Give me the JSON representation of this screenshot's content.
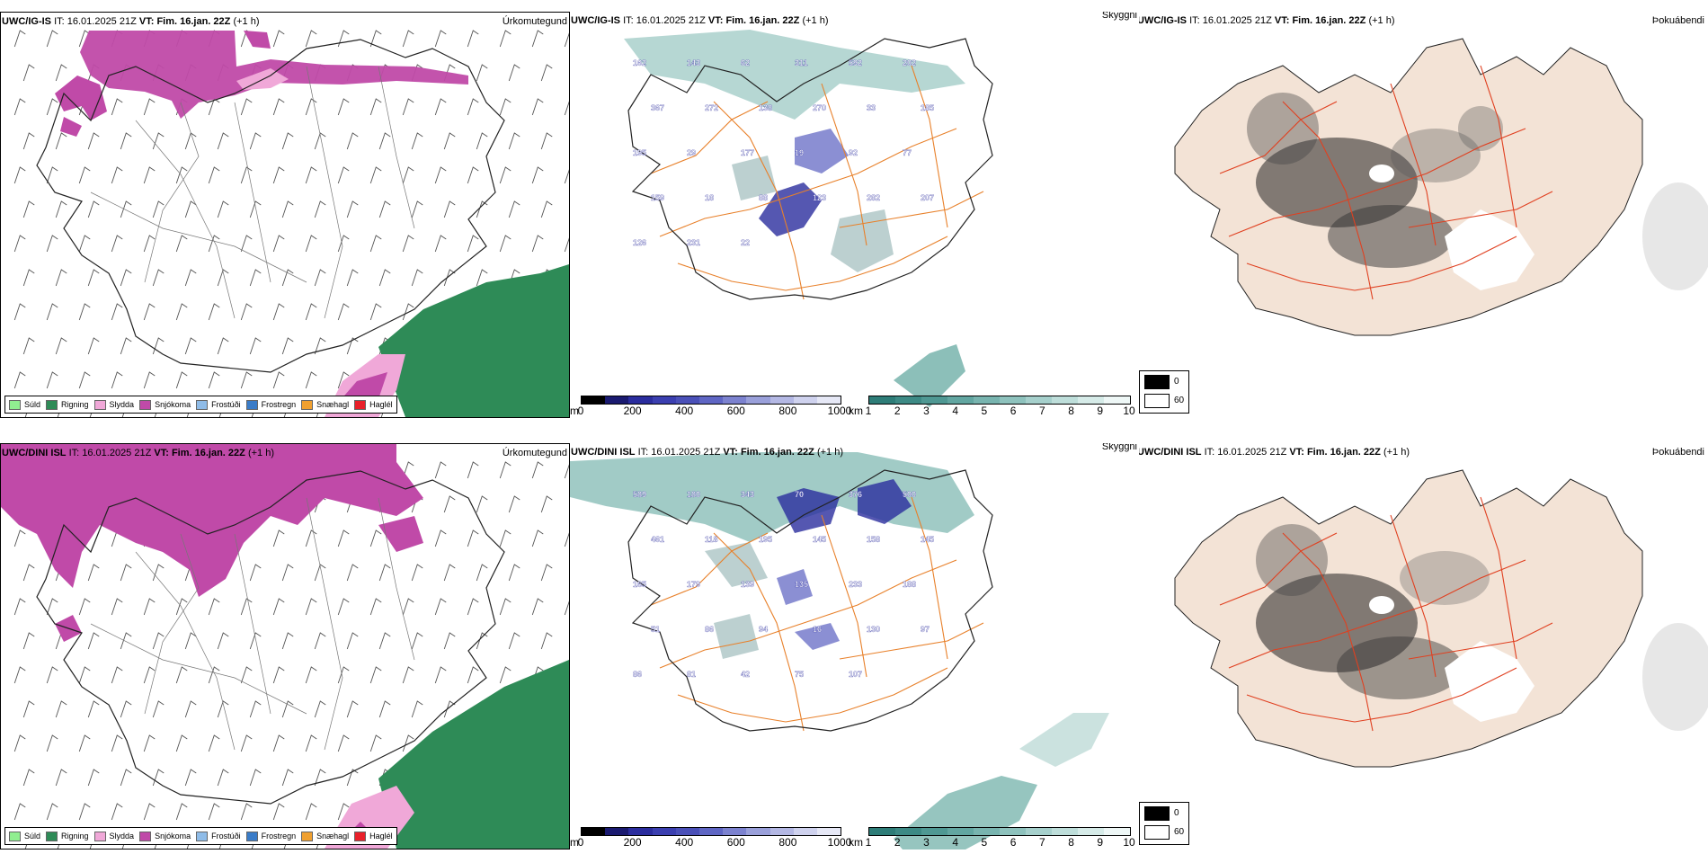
{
  "rows": [
    {
      "id": "igis",
      "precip": {
        "model": "UWC/IG-IS",
        "it_label": "IT:",
        "it": "16.01.2025 21Z",
        "vt_label": "VT:",
        "vt": "Fim. 16.jan. 22Z",
        "lead": "(+1 h)",
        "title": "Úrkomutegund"
      },
      "cloud": {
        "model": "UWC/IG-IS",
        "it_label": "IT:",
        "it": "16.01.2025 21Z",
        "vt_label": "VT:",
        "vt": "Fim. 16.jan. 22Z",
        "lead": "(+1 h)",
        "title": "Skyggni"
      },
      "fog": {
        "model": "UWC/IG-IS",
        "it_label": "IT:",
        "it": "16.01.2025 21Z",
        "vt_label": "VT:",
        "vt": "Fim. 16.jan. 22Z",
        "lead": "(+1 h)",
        "title": "Þokuábendi"
      },
      "cloud_values": [
        "162",
        "143",
        "62",
        "311",
        "592",
        "202",
        "367",
        "272",
        "138",
        "270",
        "33",
        "185",
        "195",
        "29",
        "177",
        "19",
        "92",
        "77",
        "159",
        "18",
        "88",
        "123",
        "282",
        "207",
        "126",
        "231",
        "22"
      ]
    },
    {
      "id": "dini",
      "precip": {
        "model": "UWC/DINI ISL",
        "it_label": "IT:",
        "it": "16.01.2025 21Z",
        "vt_label": "VT:",
        "vt": "Fim. 16.jan. 22Z",
        "lead": "(+1 h)",
        "title": "Úrkomutegund"
      },
      "cloud": {
        "model": "UWC/DINI ISL",
        "it_label": "IT:",
        "it": "16.01.2025 21Z",
        "vt_label": "VT:",
        "vt": "Fim. 16.jan. 22Z",
        "lead": "(+1 h)",
        "title": "Skyggni"
      },
      "fog": {
        "model": "UWC/DINI ISL",
        "it_label": "IT:",
        "it": "16.01.2025 21Z",
        "vt_label": "VT:",
        "vt": "Fim. 16.jan. 22Z",
        "lead": "(+1 h)",
        "title": "Þokuábendi"
      },
      "cloud_values": [
        "589",
        "180",
        "343",
        "70",
        "376",
        "500",
        "461",
        "118",
        "195",
        "145",
        "158",
        "145",
        "165",
        "179",
        "139",
        "135",
        "233",
        "188",
        "51",
        "86",
        "94",
        "16",
        "130",
        "97",
        "86",
        "81",
        "42",
        "75",
        "107"
      ]
    }
  ],
  "precip_legend": [
    {
      "label": "Súld",
      "color": "#90ee90"
    },
    {
      "label": "Rigning",
      "color": "#2e8b57"
    },
    {
      "label": "Slydda",
      "color": "#f0a8d8"
    },
    {
      "label": "Snjókoma",
      "color": "#c04aa8"
    },
    {
      "label": "Frostúði",
      "color": "#8fbce8"
    },
    {
      "label": "Frostregn",
      "color": "#3a7cc8"
    },
    {
      "label": "Snæhagl",
      "color": "#f0a030"
    },
    {
      "label": "Haglél",
      "color": "#e8202a"
    }
  ],
  "cloudbase_bar": {
    "unit": "m",
    "ticks": [
      "0",
      "200",
      "400",
      "600",
      "800",
      "1000"
    ]
  },
  "visibility_bar": {
    "unit": "km",
    "ticks": [
      "1",
      "2",
      "3",
      "4",
      "5",
      "6",
      "7",
      "8",
      "9",
      "10"
    ]
  },
  "fog_legend": {
    "max": "0",
    "min": "60"
  },
  "colors": {
    "snow": "#c04aa8",
    "sleet": "#f0a8d8",
    "rain": "#2e8b57",
    "roads": "#e8802a",
    "cloud_blue": "#2b2d9e",
    "visibility_teal": "#2e8b80",
    "fog_bg": "#f3e3d6",
    "coast": "#222222"
  }
}
